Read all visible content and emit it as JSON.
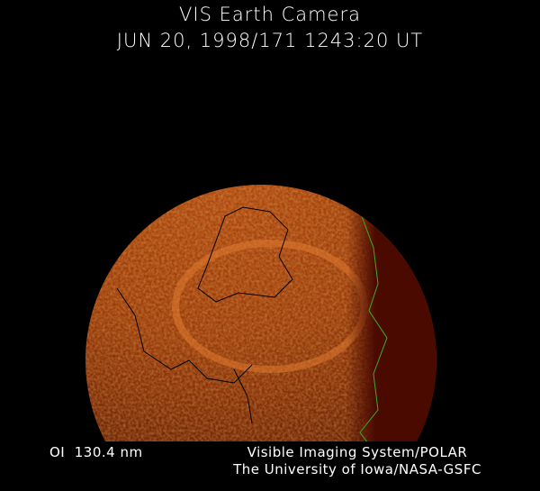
{
  "header": {
    "title": "VIS Earth Camera",
    "datetime": "JUN 20, 1998/171 1243:20 UT"
  },
  "footer": {
    "filter": "OI  130.4 nm",
    "instrument": "Visible Imaging System/POLAR",
    "organization": "The University of Iowa/NASA-GSFC"
  },
  "image": {
    "subject": "earth-disc-aurora",
    "colors": {
      "dayside": "#a8400c",
      "nightside": "#4a0a00",
      "coastline_day": "#000000",
      "coastline_night": "#3fae1c"
    }
  }
}
